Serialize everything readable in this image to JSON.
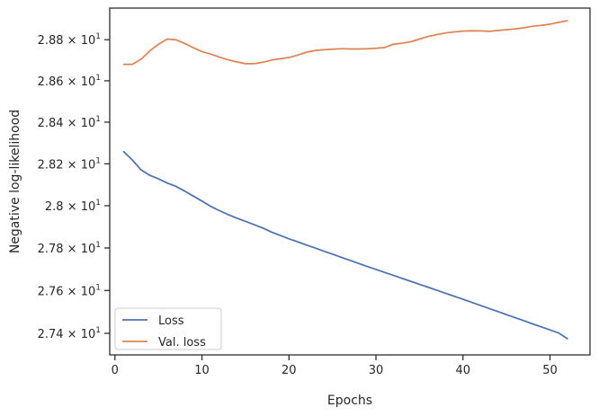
{
  "chart_data": {
    "type": "line",
    "xlabel": "Epochs",
    "ylabel": "Negative log-likelihood",
    "xlim": [
      -0.6,
      54.6
    ],
    "ylim": [
      27.3,
      28.955
    ],
    "yscale": "log",
    "grid": false,
    "legend_position": "lower-left",
    "x_ticks": [
      0,
      10,
      20,
      30,
      40,
      50
    ],
    "y_ticks": [
      {
        "value": 27.4,
        "mantissa": "2.74",
        "base": "10",
        "exp": "1"
      },
      {
        "value": 27.6,
        "mantissa": "2.76",
        "base": "10",
        "exp": "1"
      },
      {
        "value": 27.8,
        "mantissa": "2.78",
        "base": "10",
        "exp": "1"
      },
      {
        "value": 28.0,
        "mantissa": "2.8",
        "base": "10",
        "exp": "1"
      },
      {
        "value": 28.2,
        "mantissa": "2.82",
        "base": "10",
        "exp": "1"
      },
      {
        "value": 28.4,
        "mantissa": "2.84",
        "base": "10",
        "exp": "1"
      },
      {
        "value": 28.6,
        "mantissa": "2.86",
        "base": "10",
        "exp": "1"
      },
      {
        "value": 28.8,
        "mantissa": "2.88",
        "base": "10",
        "exp": "1"
      }
    ],
    "x": [
      1,
      2,
      3,
      4,
      5,
      6,
      7,
      8,
      9,
      10,
      11,
      12,
      13,
      14,
      15,
      16,
      17,
      18,
      19,
      20,
      21,
      22,
      23,
      24,
      25,
      26,
      27,
      28,
      29,
      30,
      31,
      32,
      33,
      34,
      35,
      36,
      37,
      38,
      39,
      40,
      41,
      42,
      43,
      44,
      45,
      46,
      47,
      48,
      49,
      50,
      51,
      52
    ],
    "series": [
      {
        "name": "Loss",
        "color": "#4c72b0",
        "values": [
          28.258,
          28.218,
          28.171,
          28.145,
          28.128,
          28.108,
          28.092,
          28.07,
          28.046,
          28.022,
          27.997,
          27.977,
          27.958,
          27.941,
          27.926,
          27.91,
          27.894,
          27.875,
          27.859,
          27.843,
          27.829,
          27.814,
          27.8,
          27.785,
          27.771,
          27.756,
          27.742,
          27.727,
          27.713,
          27.699,
          27.685,
          27.671,
          27.657,
          27.643,
          27.629,
          27.615,
          27.601,
          27.587,
          27.573,
          27.559,
          27.545,
          27.53,
          27.516,
          27.502,
          27.487,
          27.473,
          27.459,
          27.444,
          27.43,
          27.416,
          27.402,
          27.375
        ]
      },
      {
        "name": "Val. loss",
        "color": "#dd8452",
        "values": [
          28.68,
          28.68,
          28.705,
          28.745,
          28.778,
          28.803,
          28.8,
          28.782,
          28.761,
          28.742,
          28.73,
          28.715,
          28.702,
          28.692,
          28.683,
          28.683,
          28.69,
          28.701,
          28.707,
          28.713,
          28.725,
          28.739,
          28.747,
          28.751,
          28.754,
          28.756,
          28.755,
          28.755,
          28.756,
          28.758,
          28.762,
          28.778,
          28.783,
          28.79,
          28.803,
          28.816,
          28.825,
          28.833,
          28.838,
          28.842,
          28.844,
          28.843,
          28.841,
          28.845,
          28.849,
          28.853,
          28.858,
          28.866,
          28.87,
          28.876,
          28.885,
          28.893
        ]
      }
    ]
  }
}
